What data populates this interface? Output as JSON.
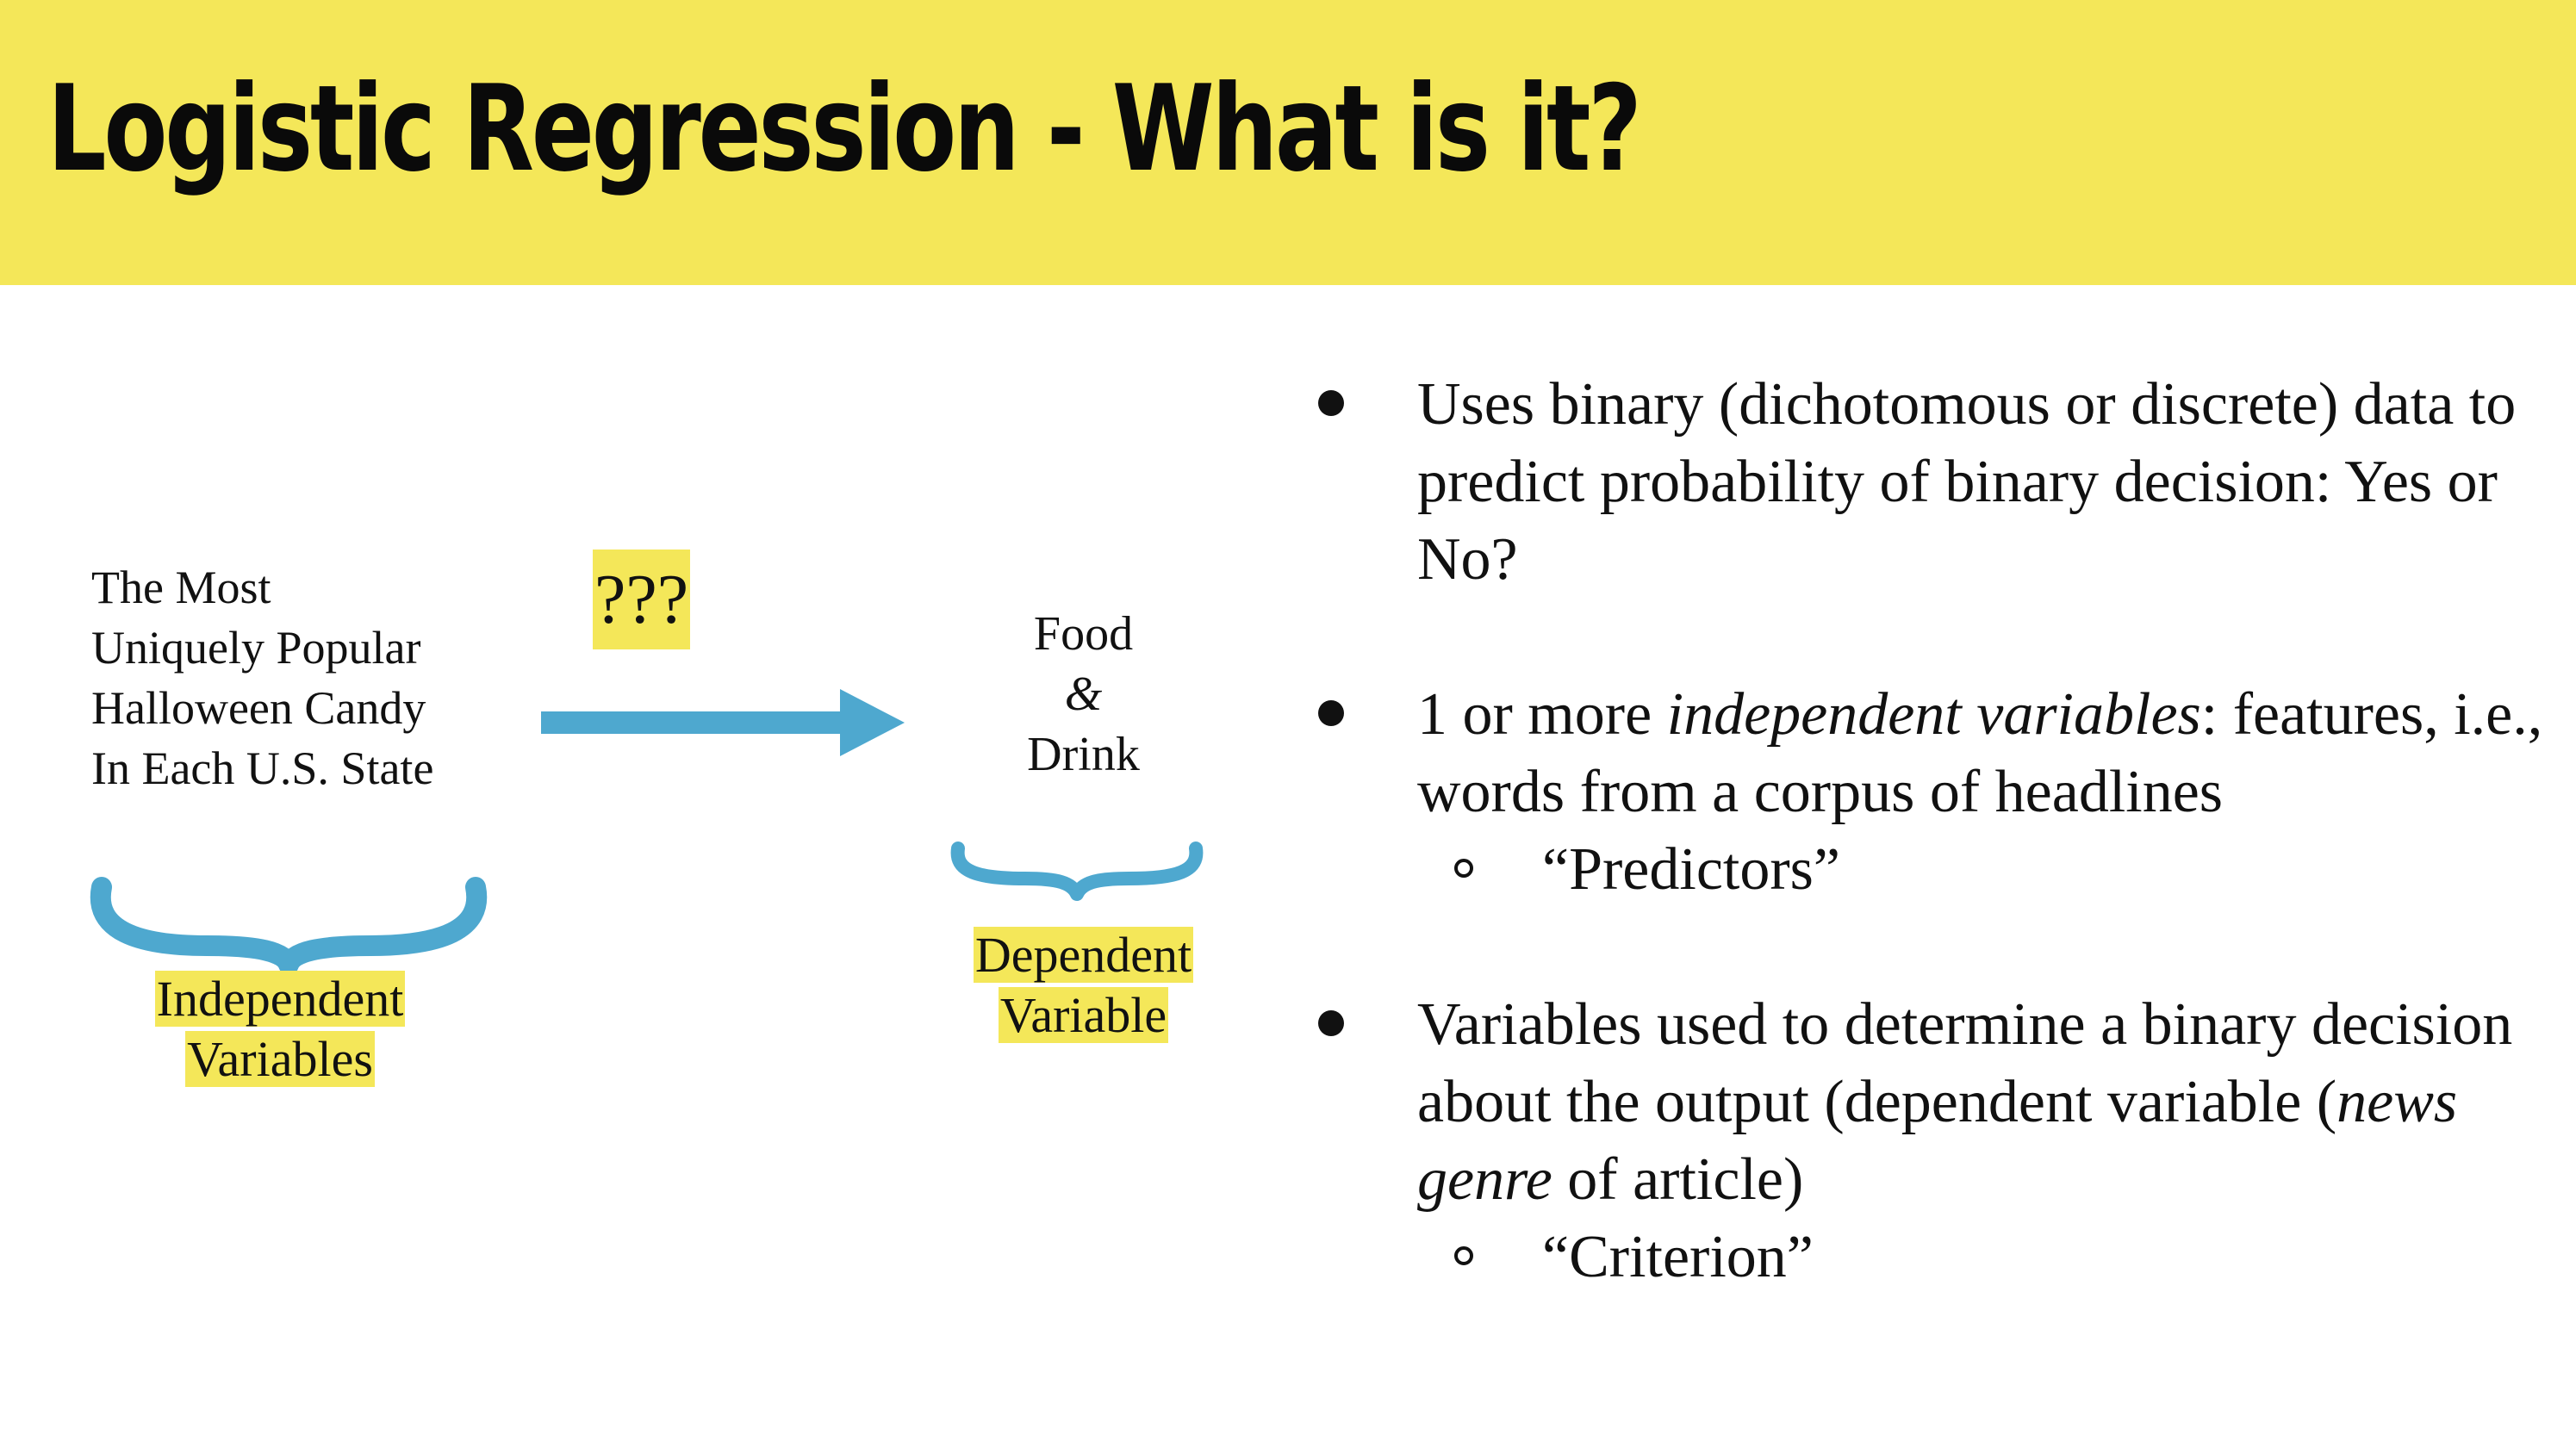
{
  "slide": {
    "title": "Logistic Regression - What is it?",
    "colors": {
      "title_bar": "#f4e759",
      "highlight": "#f4e759",
      "accent": "#4ea8cf"
    }
  },
  "diagram": {
    "independent_text": [
      "The Most",
      "Uniquely Popular",
      "Halloween Candy",
      "In Each U.S. State"
    ],
    "question": "???",
    "dependent_text": [
      "Food",
      "&",
      "Drink"
    ],
    "independent_label": [
      "Independent",
      "Variables"
    ],
    "dependent_label": [
      "Dependent",
      "Variable"
    ]
  },
  "bullets": [
    {
      "text": "Uses binary (dichotomous or discrete) data to predict probability of  binary decision: Yes or No?"
    },
    {
      "pre": "1 or more ",
      "italic": "independent variables",
      "post": ": features, i.e., words from a corpus of headlines",
      "sub": "“Predictors”"
    },
    {
      "pre": "Variables used to determine a binary decision about the output (dependent variable (",
      "italic": "news genre",
      "post": " of article)",
      "sub": "“Criterion”"
    }
  ]
}
